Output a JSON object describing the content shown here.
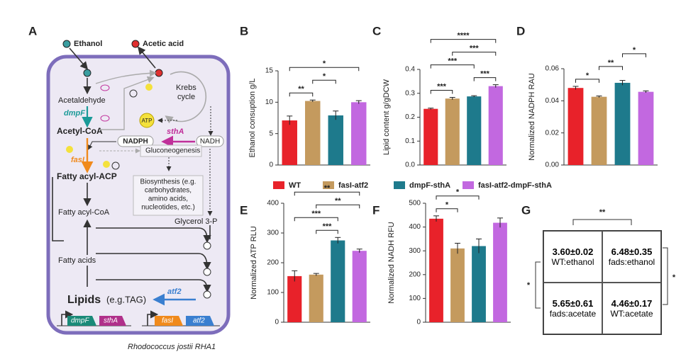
{
  "diagram": {
    "panel": "A",
    "labels": [
      "Ethanol",
      "Acetic acid",
      "Acetaldehyde",
      "dmpF",
      "Acetyl-CoA",
      "sthA",
      "NADPH",
      "NADH",
      "ATP",
      "Krebs",
      "cycle",
      "fasI",
      "Fatty acyl-ACP",
      "Gluconeogenesis",
      "Biosynthesis (e.g.",
      "carbohydrates,",
      "amino acids,",
      "nucleotides, etc.)",
      "Fatty acyl-CoA",
      "Glycerol 3-P",
      "Fatty acids",
      "Lipids",
      "(e.g.TAG)",
      "atf2",
      "dmpF",
      "sthA",
      "fasI",
      "atf2",
      "Rhodococcus jostii RHA1"
    ]
  },
  "legend": [
    {
      "name": "WT",
      "color": "#e8222a"
    },
    {
      "name": "fasI-atf2",
      "color": "#c49a5e"
    },
    {
      "name": "dmpF-sthA",
      "color": "#1e7a8c"
    },
    {
      "name": "fasI-atf2-dmpF-sthA",
      "color": "#c268e0"
    }
  ],
  "chart_data": [
    {
      "type": "bar",
      "panel": "B",
      "ylabel": "Ethanol consuption g/L",
      "values": [
        7.1,
        10.2,
        7.9,
        10.0
      ],
      "errors": [
        0.7,
        0.15,
        0.7,
        0.25
      ],
      "ylim": [
        0,
        15
      ],
      "yticks": [
        0,
        5,
        10,
        15
      ],
      "annotations": [
        {
          "label": "**",
          "pair": [
            0,
            1
          ]
        },
        {
          "label": "*",
          "pair": [
            1,
            2
          ]
        },
        {
          "label": "*",
          "pair": [
            0,
            3
          ]
        }
      ]
    },
    {
      "type": "bar",
      "panel": "C",
      "ylabel": "Lipid content g/gDCW",
      "values": [
        0.235,
        0.278,
        0.287,
        0.33
      ],
      "errors": [
        0.003,
        0.005,
        0.003,
        0.006
      ],
      "ylim": [
        0,
        0.4
      ],
      "yticks": [
        {
          "value": 0,
          "label": "0.0"
        },
        0.1,
        0.2,
        0.3,
        0.4
      ],
      "annotations": [
        {
          "label": "***",
          "pair": [
            0,
            1
          ]
        },
        {
          "label": "***",
          "pair": [
            2,
            3
          ]
        },
        {
          "label": "***",
          "pair": [
            0,
            2
          ]
        },
        {
          "label": "***",
          "pair": [
            1,
            3
          ]
        },
        {
          "label": "****",
          "pair": [
            0,
            3
          ]
        }
      ]
    },
    {
      "type": "bar",
      "panel": "D",
      "ylabel": "Normalized NADPH RAU",
      "values": [
        0.048,
        0.0425,
        0.0512,
        0.0456
      ],
      "errors": [
        0.001,
        0.0005,
        0.0015,
        0.0006
      ],
      "ylim": [
        0,
        0.06
      ],
      "yticks": [
        {
          "value": 0,
          "label": "0.00"
        },
        0.02,
        0.04,
        0.06
      ],
      "annotations": [
        {
          "label": "*",
          "pair": [
            0,
            1
          ]
        },
        {
          "label": "**",
          "pair": [
            1,
            2
          ]
        },
        {
          "label": "*",
          "pair": [
            2,
            3
          ]
        }
      ]
    },
    {
      "type": "bar",
      "panel": "E",
      "ylabel": "Normalized ATP RLU",
      "values": [
        155,
        160,
        275,
        240
      ],
      "errors": [
        18,
        4,
        10,
        6
      ],
      "ylim": [
        0,
        400
      ],
      "yticks": [
        0,
        100,
        200,
        300,
        400
      ],
      "annotations": [
        {
          "label": "***",
          "pair": [
            1,
            2
          ]
        },
        {
          "label": "***",
          "pair": [
            0,
            2
          ]
        },
        {
          "label": "**",
          "pair": [
            1,
            3
          ]
        },
        {
          "label": "**",
          "pair": [
            0,
            3
          ]
        }
      ]
    },
    {
      "type": "bar",
      "panel": "F",
      "ylabel": "Normalized NADH RFU",
      "values": [
        435,
        310,
        320,
        418
      ],
      "errors": [
        12,
        22,
        30,
        20
      ],
      "ylim": [
        0,
        500
      ],
      "yticks": [
        0,
        100,
        200,
        300,
        400,
        500
      ],
      "annotations": [
        {
          "label": "*",
          "pair": [
            0,
            1
          ]
        },
        {
          "label": "*",
          "pair": [
            0,
            2
          ]
        }
      ]
    }
  ],
  "table": {
    "panel": "G",
    "rows": [
      [
        {
          "stat": "3.60±0.02",
          "condition": "WT:ethanol"
        },
        {
          "stat": "6.48±0.35",
          "condition": "fads:ethanol"
        }
      ],
      [
        {
          "stat": "5.65±0.61",
          "condition": "fads:acetate"
        },
        {
          "stat": "4.46±0.17",
          "condition": "WT:acetate"
        }
      ]
    ],
    "significance": {
      "top": "**",
      "left": "*",
      "right": "*"
    }
  }
}
